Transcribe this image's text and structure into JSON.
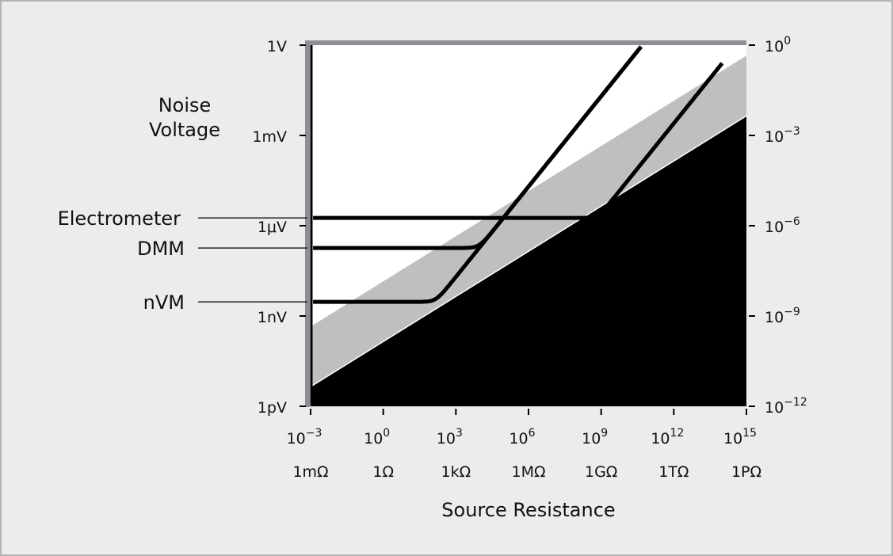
{
  "chart_data": {
    "type": "line",
    "xlabel": "Source Resistance",
    "ylabel": [
      "Noise",
      "Voltage"
    ],
    "x_scale": "log",
    "y_scale": "log",
    "xlim_log10_ohm": [
      -3,
      15
    ],
    "ylim_log10_volt": [
      -12,
      0
    ],
    "x_tick_exponents": [
      "10^-3",
      "10^0",
      "10^3",
      "10^6",
      "10^9",
      "10^12",
      "10^15"
    ],
    "x_tick_exp_values": [
      -3,
      0,
      3,
      6,
      9,
      12,
      15
    ],
    "x_tick_names": [
      "1mΩ",
      "1Ω",
      "1kΩ",
      "1MΩ",
      "1GΩ",
      "1TΩ",
      "1PΩ"
    ],
    "y_tick_left": [
      "1V",
      "1mV",
      "1μV",
      "1nV",
      "1pV"
    ],
    "y_tick_right": [
      "0",
      "−3",
      "−6",
      "−9",
      "−12"
    ],
    "y_tick_values": [
      0,
      -3,
      -6,
      -9,
      -12
    ],
    "regions": [
      {
        "label": "",
        "fill": "#000000",
        "boundary_log10": {
          "at_x": [
            -3,
            15
          ],
          "y": [
            -11.35,
            -2.35
          ]
        }
      },
      {
        "label": "",
        "fill": "#bebfc1",
        "boundary_log10": {
          "at_x": [
            -3,
            15
          ],
          "y": [
            -9.35,
            -0.35
          ]
        }
      }
    ],
    "series": [
      {
        "name": "Electrometer",
        "floor_log10_V": -5.74,
        "slope_offset_log10": -14.6,
        "x_range_log10": [
          -2.9,
          14.0
        ]
      },
      {
        "name": "DMM",
        "floor_log10_V": -6.74,
        "slope_offset_log10": -10.7,
        "x_range_log10": [
          -2.9,
          10.65
        ]
      },
      {
        "name": "nVM",
        "floor_log10_V": -8.53,
        "slope_offset_log10": -10.7,
        "x_range_log10": [
          -2.9,
          10.65
        ]
      }
    ],
    "grid": false,
    "legend": "left-callouts"
  }
}
